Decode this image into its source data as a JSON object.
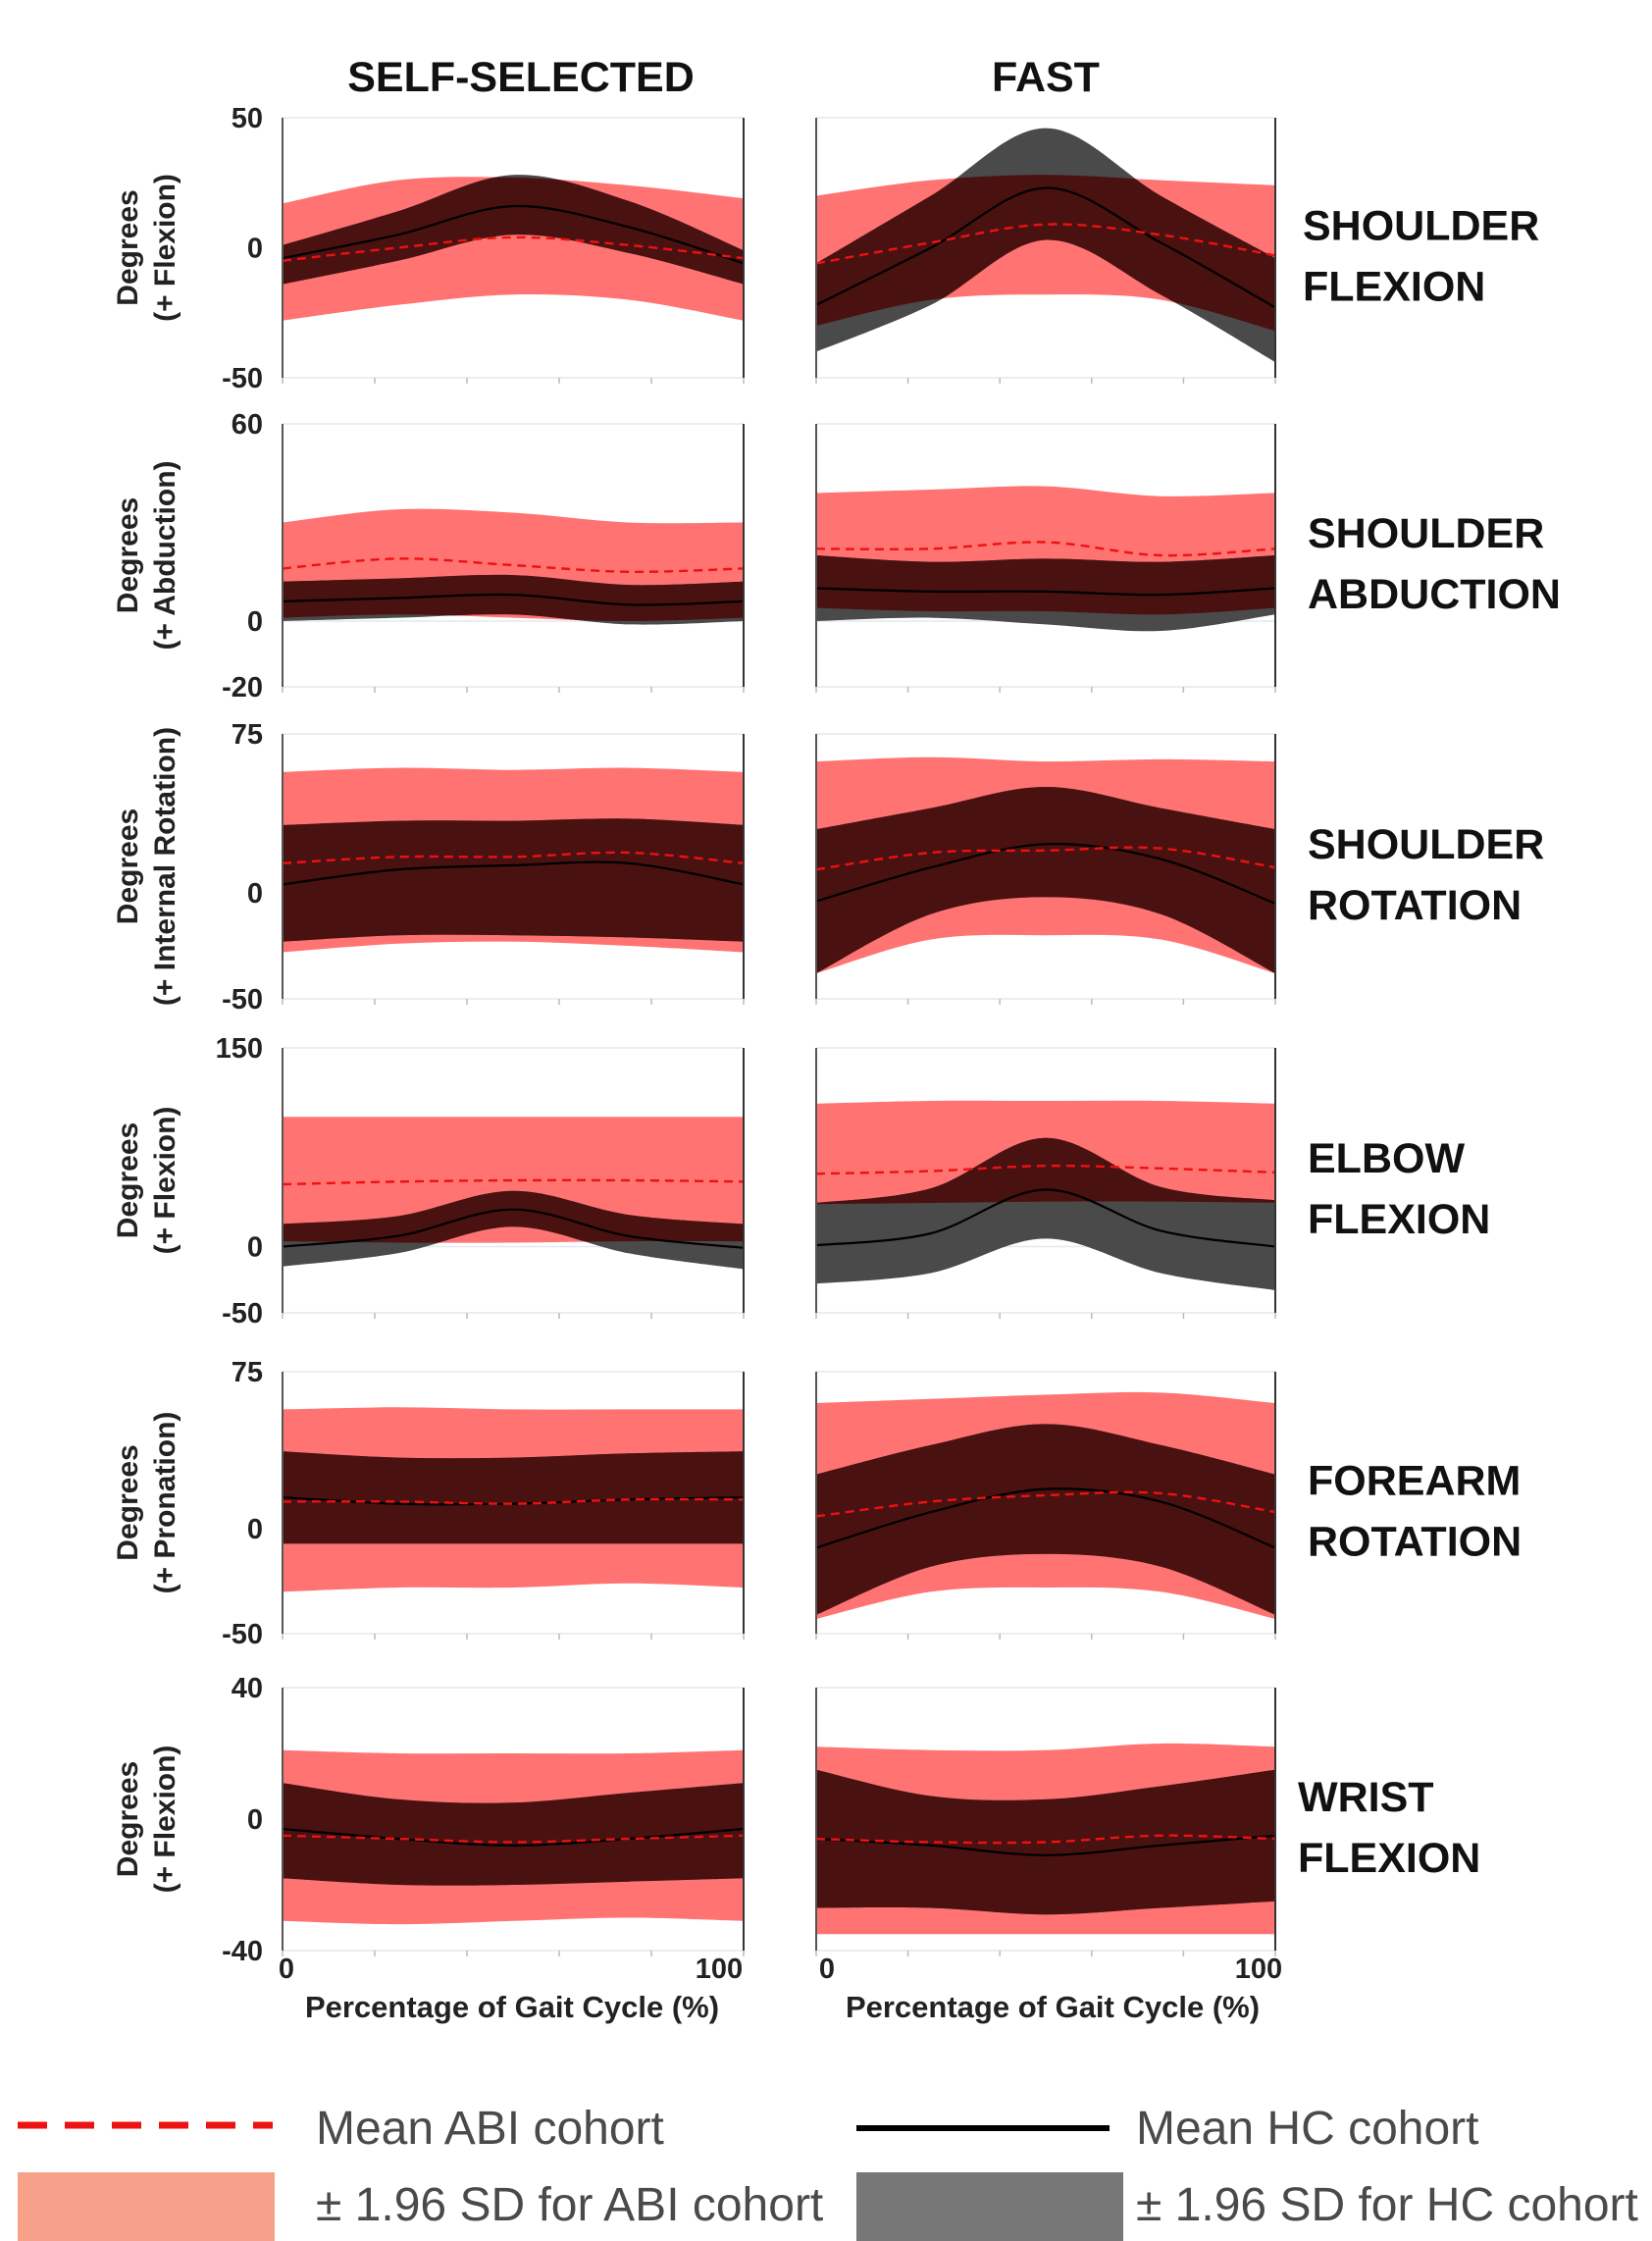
{
  "columns": [
    "SELF-SELECTED",
    "FAST"
  ],
  "legend": {
    "mean_abi": "Mean ABI cohort",
    "mean_hc": "Mean HC cohort",
    "sd_abi": "± 1.96 SD for ABI cohort",
    "sd_hc": "± 1.96 SD for HC cohort"
  },
  "xlabel": "Percentage of Gait Cycle (%)",
  "colors": {
    "abi_band": "#ff6b6b",
    "hc_band": "#4a4a4a",
    "overlap": "#4a1111",
    "abi_mean": "#ee1111",
    "hc_mean": "#000000",
    "legend_abi_band": "#f7a08a",
    "legend_hc_band": "#777777"
  },
  "chart_data": [
    {
      "type": "area",
      "row": 1,
      "joint_label": [
        "SHOULDER",
        "FLEXION"
      ],
      "ylabel": [
        "Degrees",
        "(+ Flexion)"
      ],
      "ylim": [
        -50,
        50
      ],
      "yticks": [
        50,
        0,
        -50
      ],
      "xlim": [
        0,
        100
      ],
      "xticks": [
        0,
        100
      ],
      "x": [
        0,
        25,
        50,
        75,
        100
      ],
      "panels": [
        {
          "column": "SELF-SELECTED",
          "abi_mean": [
            -5,
            0,
            4,
            1,
            -4
          ],
          "abi_upper": [
            17,
            26,
            27,
            24,
            19
          ],
          "abi_lower": [
            -28,
            -22,
            -18,
            -20,
            -28
          ],
          "hc_mean": [
            -4,
            5,
            16,
            8,
            -6
          ],
          "hc_upper": [
            1,
            14,
            28,
            18,
            -1
          ],
          "hc_lower": [
            -14,
            -5,
            5,
            -2,
            -14
          ]
        },
        {
          "column": "FAST",
          "abi_mean": [
            -6,
            2,
            9,
            5,
            -3
          ],
          "abi_upper": [
            20,
            26,
            28,
            26,
            24
          ],
          "abi_lower": [
            -30,
            -20,
            -18,
            -20,
            -32
          ],
          "hc_mean": [
            -22,
            0,
            23,
            2,
            -23
          ],
          "hc_upper": [
            -6,
            20,
            46,
            20,
            -4
          ],
          "hc_lower": [
            -40,
            -22,
            3,
            -18,
            -44
          ]
        }
      ]
    },
    {
      "type": "area",
      "row": 2,
      "joint_label": [
        "SHOULDER",
        "ABDUCTION"
      ],
      "ylabel": [
        "Degrees",
        "(+ Abduction)"
      ],
      "ylim": [
        -20,
        60
      ],
      "yticks": [
        60,
        0,
        -20
      ],
      "xlim": [
        0,
        100
      ],
      "xticks": [
        0,
        100
      ],
      "x": [
        0,
        25,
        50,
        75,
        100
      ],
      "panels": [
        {
          "column": "SELF-SELECTED",
          "abi_mean": [
            16,
            19,
            17,
            15,
            16
          ],
          "abi_upper": [
            30,
            34,
            33,
            30,
            30
          ],
          "abi_lower": [
            1,
            2,
            1,
            0,
            1
          ],
          "hc_mean": [
            6,
            7,
            8,
            5,
            6
          ],
          "hc_upper": [
            12,
            13,
            14,
            11,
            12
          ],
          "hc_lower": [
            0,
            1,
            2,
            -1,
            0
          ]
        },
        {
          "column": "FAST",
          "abi_mean": [
            22,
            22,
            24,
            20,
            22
          ],
          "abi_upper": [
            39,
            40,
            41,
            38,
            39
          ],
          "abi_lower": [
            4,
            3,
            3,
            2,
            4
          ],
          "hc_mean": [
            10,
            9,
            9,
            8,
            10
          ],
          "hc_upper": [
            20,
            18,
            19,
            18,
            20
          ],
          "hc_lower": [
            0,
            1,
            -1,
            -3,
            2
          ]
        }
      ]
    },
    {
      "type": "area",
      "row": 3,
      "joint_label": [
        "SHOULDER",
        "ROTATION"
      ],
      "ylabel": [
        "Degrees",
        "(+ Internal Rotation)"
      ],
      "ylim": [
        -50,
        75
      ],
      "yticks": [
        75,
        0,
        -50
      ],
      "xlim": [
        0,
        100
      ],
      "xticks": [
        0,
        100
      ],
      "x": [
        0,
        25,
        50,
        75,
        100
      ],
      "panels": [
        {
          "column": "SELF-SELECTED",
          "abi_mean": [
            14,
            17,
            17,
            19,
            14
          ],
          "abi_upper": [
            57,
            59,
            58,
            59,
            57
          ],
          "abi_lower": [
            -28,
            -24,
            -23,
            -25,
            -28
          ],
          "hc_mean": [
            4,
            11,
            13,
            14,
            4
          ],
          "hc_upper": [
            32,
            34,
            34,
            35,
            32
          ],
          "hc_lower": [
            -23,
            -20,
            -20,
            -21,
            -23
          ]
        },
        {
          "column": "FAST",
          "abi_mean": [
            11,
            19,
            20,
            21,
            12
          ],
          "abi_upper": [
            62,
            64,
            62,
            63,
            62
          ],
          "abi_lower": [
            -38,
            -22,
            -20,
            -22,
            -38
          ],
          "hc_mean": [
            -4,
            12,
            23,
            16,
            -5
          ],
          "hc_upper": [
            30,
            40,
            50,
            40,
            30
          ],
          "hc_lower": [
            -38,
            -10,
            -2,
            -10,
            -38
          ]
        }
      ]
    },
    {
      "type": "area",
      "row": 4,
      "joint_label": [
        "ELBOW",
        "FLEXION"
      ],
      "ylabel": [
        "Degrees",
        "(+ Flexion)"
      ],
      "ylim": [
        -50,
        150
      ],
      "yticks": [
        150,
        0,
        -50
      ],
      "xlim": [
        0,
        100
      ],
      "xticks": [
        0,
        100
      ],
      "x": [
        0,
        25,
        50,
        75,
        100
      ],
      "panels": [
        {
          "column": "SELF-SELECTED",
          "abi_mean": [
            47,
            49,
            50,
            50,
            49
          ],
          "abi_upper": [
            98,
            98,
            98,
            98,
            98
          ],
          "abi_lower": [
            4,
            3,
            3,
            4,
            4
          ],
          "hc_mean": [
            0,
            8,
            28,
            8,
            -1
          ],
          "hc_upper": [
            17,
            23,
            42,
            24,
            17
          ],
          "hc_lower": [
            -15,
            -5,
            15,
            -5,
            -17
          ]
        },
        {
          "column": "FAST",
          "abi_mean": [
            55,
            57,
            61,
            59,
            56
          ],
          "abi_upper": [
            108,
            110,
            110,
            110,
            108
          ],
          "abi_lower": [
            32,
            33,
            34,
            34,
            33
          ],
          "hc_mean": [
            1,
            10,
            43,
            12,
            0
          ],
          "hc_upper": [
            33,
            44,
            82,
            45,
            35
          ],
          "hc_lower": [
            -28,
            -20,
            6,
            -20,
            -33
          ]
        }
      ]
    },
    {
      "type": "area",
      "row": 5,
      "joint_label": [
        "FOREARM",
        "ROTATION"
      ],
      "ylabel": [
        "Degrees",
        "(+ Pronation)"
      ],
      "ylim": [
        -50,
        75
      ],
      "yticks": [
        75,
        0,
        -50
      ],
      "xlim": [
        0,
        100
      ],
      "xticks": [
        0,
        100
      ],
      "x": [
        0,
        25,
        50,
        75,
        100
      ],
      "panels": [
        {
          "column": "SELF-SELECTED",
          "abi_mean": [
            13,
            13,
            12,
            14,
            14
          ],
          "abi_upper": [
            57,
            58,
            57,
            57,
            57
          ],
          "abi_lower": [
            -30,
            -28,
            -28,
            -26,
            -28
          ],
          "hc_mean": [
            15,
            12,
            12,
            14,
            15
          ],
          "hc_upper": [
            37,
            34,
            34,
            36,
            37
          ],
          "hc_lower": [
            -7,
            -7,
            -7,
            -7,
            -7
          ]
        },
        {
          "column": "FAST",
          "abi_mean": [
            6,
            13,
            16,
            17,
            8
          ],
          "abi_upper": [
            60,
            62,
            64,
            65,
            60
          ],
          "abi_lower": [
            -43,
            -30,
            -28,
            -30,
            -43
          ],
          "hc_mean": [
            -9,
            8,
            19,
            13,
            -9
          ],
          "hc_upper": [
            26,
            40,
            50,
            40,
            26
          ],
          "hc_lower": [
            -41,
            -18,
            -12,
            -18,
            -41
          ]
        }
      ]
    },
    {
      "type": "area",
      "row": 6,
      "joint_label": [
        "WRIST",
        "FLEXION"
      ],
      "ylabel": [
        "Degrees",
        "(+ Flexion)"
      ],
      "ylim": [
        -40,
        40
      ],
      "yticks": [
        40,
        0,
        -40
      ],
      "xlim": [
        0,
        100
      ],
      "xticks": [
        0,
        100
      ],
      "x": [
        0,
        25,
        50,
        75,
        100
      ],
      "panels": [
        {
          "column": "SELF-SELECTED",
          "abi_mean": [
            -5,
            -6,
            -7,
            -6,
            -5
          ],
          "abi_upper": [
            21,
            20,
            20,
            20,
            21
          ],
          "abi_lower": [
            -31,
            -32,
            -31,
            -30,
            -31
          ],
          "hc_mean": [
            -3,
            -6,
            -8,
            -6,
            -3
          ],
          "hc_upper": [
            11,
            6,
            5,
            8,
            11
          ],
          "hc_lower": [
            -18,
            -20,
            -20,
            -19,
            -18
          ]
        },
        {
          "column": "FAST",
          "abi_mean": [
            -6,
            -7,
            -7,
            -5,
            -6
          ],
          "abi_upper": [
            22,
            21,
            21,
            23,
            22
          ],
          "abi_lower": [
            -35,
            -35,
            -35,
            -35,
            -35
          ],
          "hc_mean": [
            -6,
            -8,
            -11,
            -8,
            -5
          ],
          "hc_upper": [
            15,
            7,
            6,
            10,
            15
          ],
          "hc_lower": [
            -27,
            -27,
            -29,
            -27,
            -25
          ]
        }
      ]
    }
  ]
}
